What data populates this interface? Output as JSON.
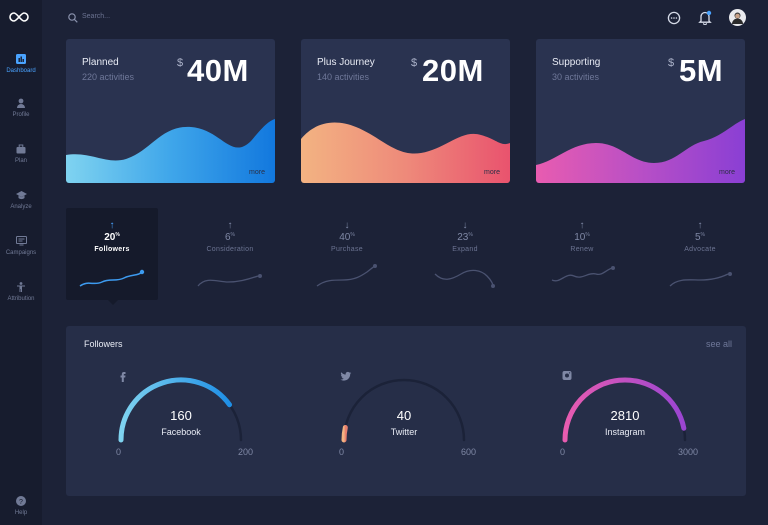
{
  "sidebar": {
    "items": [
      {
        "label": "Dashboard",
        "icon": "chart-icon"
      },
      {
        "label": "Profile",
        "icon": "user-icon"
      },
      {
        "label": "Plan",
        "icon": "briefcase-icon"
      },
      {
        "label": "Analyze",
        "icon": "graduation-icon"
      },
      {
        "label": "Campaigns",
        "icon": "monitor-icon"
      },
      {
        "label": "Attribution",
        "icon": "person-icon"
      }
    ],
    "help_label": "Help"
  },
  "header": {
    "search_placeholder": "Search..."
  },
  "cards": [
    {
      "title": "Planned",
      "subtitle": "220 activities",
      "currency": "$",
      "amount": "40M",
      "more": "more"
    },
    {
      "title": "Plus Journey",
      "subtitle": "140 activities",
      "currency": "$",
      "amount": "20M",
      "more": "more"
    },
    {
      "title": "Supporting",
      "subtitle": "30 activities",
      "currency": "$",
      "amount": "5M",
      "more": "more"
    }
  ],
  "metrics": [
    {
      "arrow": "↑",
      "value": "20",
      "unit": "%",
      "label": "Followers"
    },
    {
      "arrow": "↑",
      "value": "6",
      "unit": "%",
      "label": "Consideration"
    },
    {
      "arrow": "↓",
      "value": "40",
      "unit": "%",
      "label": "Purchase"
    },
    {
      "arrow": "↓",
      "value": "23",
      "unit": "%",
      "label": "Expand"
    },
    {
      "arrow": "↑",
      "value": "10",
      "unit": "%",
      "label": "Renew"
    },
    {
      "arrow": "↑",
      "value": "5",
      "unit": "%",
      "label": "Advocate"
    }
  ],
  "followers": {
    "title": "Followers",
    "see_all": "see all",
    "gauges": [
      {
        "value": "160",
        "name": "Facebook",
        "min": "0",
        "max": "200",
        "fraction": 0.8,
        "icon": "facebook-icon"
      },
      {
        "value": "40",
        "name": "Twitter",
        "min": "0",
        "max": "600",
        "fraction": 0.067,
        "icon": "twitter-icon"
      },
      {
        "value": "2810",
        "name": "Instagram",
        "min": "0",
        "max": "3000",
        "fraction": 0.937,
        "icon": "instagram-icon"
      }
    ]
  },
  "colors": {
    "accent": "#4aa3ff",
    "background": "#1c2237",
    "card": "#2a3350"
  }
}
